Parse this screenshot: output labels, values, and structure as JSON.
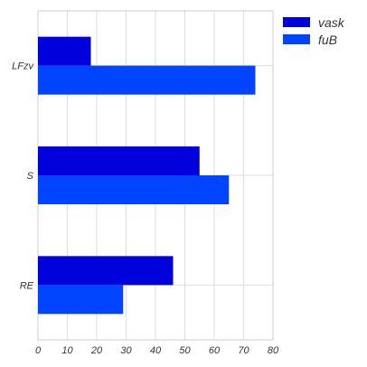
{
  "chart_data": {
    "type": "bar",
    "orientation": "horizontal",
    "categories": [
      "LFzv",
      "S",
      "RE"
    ],
    "series": [
      {
        "name": "vask",
        "values": [
          18,
          55,
          46
        ],
        "color": "#0000dd"
      },
      {
        "name": "fuB",
        "values": [
          74,
          65,
          29
        ],
        "color": "#0044ff"
      }
    ],
    "xlim": [
      0,
      80
    ],
    "xticks": [
      0,
      10,
      20,
      30,
      40,
      50,
      60,
      70,
      80
    ],
    "grid": true,
    "legend_position": "top-right",
    "title": "",
    "xlabel": "",
    "ylabel": ""
  }
}
